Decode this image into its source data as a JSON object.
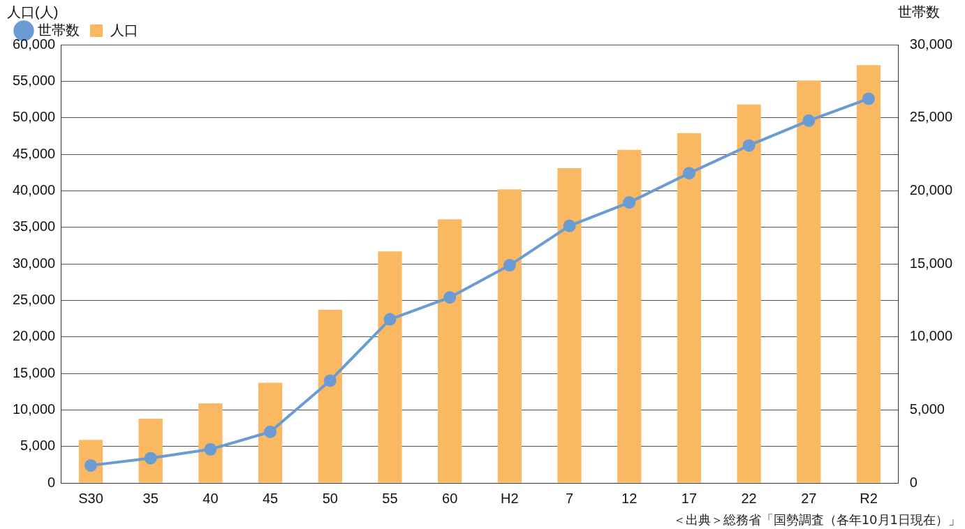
{
  "chart_data": {
    "type": "bar",
    "ylabel": "人口(人)",
    "y2label": "世帯数",
    "categories": [
      "S30",
      "35",
      "40",
      "45",
      "50",
      "55",
      "60",
      "H2",
      "7",
      "12",
      "17",
      "22",
      "27",
      "R2"
    ],
    "series": [
      {
        "name": "人口",
        "color": "#fbb862",
        "values": [
          5900,
          8800,
          10900,
          13700,
          23700,
          31700,
          36100,
          40200,
          43100,
          45600,
          47900,
          51800,
          55100,
          57200
        ]
      },
      {
        "name": "世帯数",
        "type": "line",
        "axis": "y2",
        "color": "#6a9cd3",
        "marker": "circle",
        "values": [
          1200,
          1700,
          2300,
          3500,
          7000,
          11200,
          12700,
          14900,
          17600,
          19200,
          21200,
          23100,
          24800,
          26300
        ]
      }
    ],
    "ylim": [
      0,
      60000
    ],
    "yticks": [
      0,
      {
        "value": 5000,
        "label": "5,000"
      },
      {
        "value": 10000,
        "label": "10,000"
      },
      {
        "value": 15000,
        "label": "15,000"
      },
      {
        "value": 20000,
        "label": "20,000"
      },
      {
        "value": 25000,
        "label": "25,000"
      },
      {
        "value": 30000,
        "label": "30,000"
      },
      {
        "value": 35000,
        "label": "35,000"
      },
      {
        "value": 40000,
        "label": "40,000"
      },
      {
        "value": 45000,
        "label": "45,000"
      },
      {
        "value": 50000,
        "label": "50,000"
      },
      {
        "value": 55000,
        "label": "55,000"
      },
      {
        "value": 60000,
        "label": "60,000"
      }
    ],
    "y2lim": [
      0,
      30000
    ],
    "y2ticks": [
      0,
      {
        "value": 5000,
        "label": "5,000"
      },
      {
        "value": 10000,
        "label": "10,000"
      },
      {
        "value": 15000,
        "label": "15,000"
      },
      {
        "value": 20000,
        "label": "20,000"
      },
      {
        "value": 25000,
        "label": "25,000"
      },
      {
        "value": 30000,
        "label": "30,000"
      }
    ],
    "grid": "y",
    "legend": "top left",
    "annotations": [
      "＜出典＞総務省「国勢調査（各年10月1日現在）」"
    ]
  }
}
